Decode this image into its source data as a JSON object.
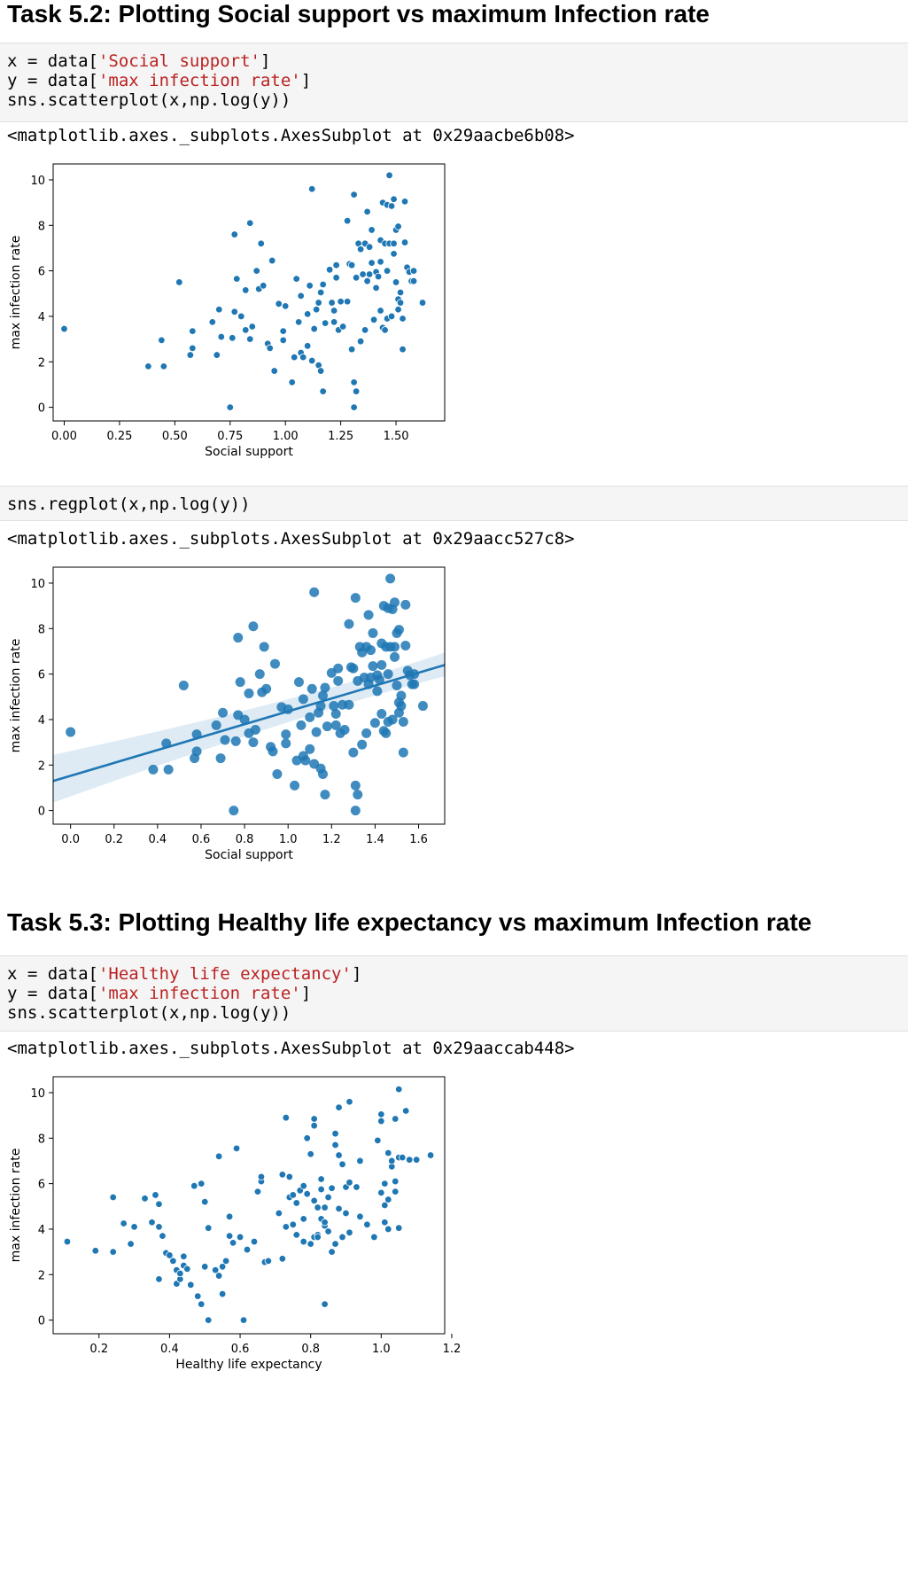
{
  "tasks": [
    {
      "heading": "Task 5.2: Plotting Social support vs maximum Infection rate",
      "code_lines": [
        [
          {
            "t": "x = data["
          },
          {
            "t": "'Social support'",
            "s": 1
          },
          {
            "t": "]"
          }
        ],
        [
          {
            "t": "y = data["
          },
          {
            "t": "'max infection rate'",
            "s": 1
          },
          {
            "t": "]"
          }
        ],
        [
          {
            "t": "sns.scatterplot(x,np.log(y))"
          }
        ]
      ],
      "output": "<matplotlib.axes._subplots.AxesSubplot at 0x29aacbe6b08>"
    },
    {
      "heading": "",
      "code_lines": [
        [
          {
            "t": "sns.regplot(x,np.log(y))"
          }
        ]
      ],
      "output": "<matplotlib.axes._subplots.AxesSubplot at 0x29aacc527c8>"
    },
    {
      "heading": "Task 5.3: Plotting Healthy life expectancy vs maximum Infection rate",
      "code_lines": [
        [
          {
            "t": "x = data["
          },
          {
            "t": "'Healthy life expectancy'",
            "s": 1
          },
          {
            "t": "]"
          }
        ],
        [
          {
            "t": "y = data["
          },
          {
            "t": "'max infection rate'",
            "s": 1
          },
          {
            "t": "]"
          }
        ],
        [
          {
            "t": "sns.scatterplot(x,np.log(y))"
          }
        ]
      ],
      "output": "<matplotlib.axes._subplots.AxesSubplot at 0x29aaccab448>"
    }
  ],
  "chart_data": [
    {
      "type": "scatter",
      "xlabel": "Social support",
      "ylabel": "max infection rate",
      "xlim": [
        -0.05,
        1.72
      ],
      "ylim": [
        -0.6,
        10.7
      ],
      "xticks": [
        0.0,
        0.25,
        0.5,
        0.75,
        1.0,
        1.25,
        1.5
      ],
      "xtick_labels": [
        "0.00",
        "0.25",
        "0.50",
        "0.75",
        "1.00",
        "1.25",
        "1.50"
      ],
      "yticks": [
        0,
        2,
        4,
        6,
        8,
        10
      ],
      "ytick_labels": [
        "0",
        "2",
        "4",
        "6",
        "8",
        "10"
      ],
      "color": "#1f77b4",
      "points": [
        [
          0.0,
          3.45
        ],
        [
          0.38,
          1.8
        ],
        [
          0.45,
          1.8
        ],
        [
          0.44,
          2.95
        ],
        [
          0.52,
          5.5
        ],
        [
          0.57,
          2.3
        ],
        [
          0.58,
          2.6
        ],
        [
          0.58,
          3.35
        ],
        [
          0.67,
          3.75
        ],
        [
          0.69,
          2.3
        ],
        [
          0.7,
          4.3
        ],
        [
          0.71,
          3.1
        ],
        [
          0.75,
          0.0
        ],
        [
          0.76,
          3.05
        ],
        [
          0.77,
          7.6
        ],
        [
          0.77,
          4.2
        ],
        [
          0.78,
          5.65
        ],
        [
          0.8,
          4.0
        ],
        [
          0.82,
          3.4
        ],
        [
          0.82,
          5.15
        ],
        [
          0.84,
          8.1
        ],
        [
          0.84,
          3.0
        ],
        [
          0.85,
          3.55
        ],
        [
          0.87,
          6.0
        ],
        [
          0.88,
          5.2
        ],
        [
          0.89,
          7.2
        ],
        [
          0.9,
          5.35
        ],
        [
          0.92,
          2.8
        ],
        [
          0.93,
          2.6
        ],
        [
          0.94,
          6.45
        ],
        [
          0.95,
          1.6
        ],
        [
          0.97,
          4.55
        ],
        [
          0.99,
          3.35
        ],
        [
          0.99,
          2.95
        ],
        [
          1.0,
          4.45
        ],
        [
          1.03,
          1.1
        ],
        [
          1.04,
          2.2
        ],
        [
          1.05,
          5.65
        ],
        [
          1.06,
          3.75
        ],
        [
          1.07,
          2.4
        ],
        [
          1.07,
          4.9
        ],
        [
          1.08,
          2.2
        ],
        [
          1.1,
          2.7
        ],
        [
          1.1,
          4.1
        ],
        [
          1.11,
          5.35
        ],
        [
          1.12,
          2.05
        ],
        [
          1.12,
          9.6
        ],
        [
          1.13,
          3.45
        ],
        [
          1.14,
          4.3
        ],
        [
          1.15,
          4.6
        ],
        [
          1.15,
          1.85
        ],
        [
          1.16,
          5.05
        ],
        [
          1.16,
          1.6
        ],
        [
          1.17,
          0.7
        ],
        [
          1.17,
          5.4
        ],
        [
          1.18,
          3.7
        ],
        [
          1.2,
          6.05
        ],
        [
          1.21,
          4.6
        ],
        [
          1.22,
          4.25
        ],
        [
          1.22,
          3.75
        ],
        [
          1.23,
          6.25
        ],
        [
          1.23,
          5.7
        ],
        [
          1.24,
          3.4
        ],
        [
          1.25,
          4.65
        ],
        [
          1.26,
          3.55
        ],
        [
          1.28,
          8.2
        ],
        [
          1.28,
          4.65
        ],
        [
          1.29,
          6.3
        ],
        [
          1.3,
          6.25
        ],
        [
          1.3,
          2.55
        ],
        [
          1.31,
          9.35
        ],
        [
          1.31,
          1.1
        ],
        [
          1.31,
          0.0
        ],
        [
          1.32,
          5.7
        ],
        [
          1.32,
          0.7
        ],
        [
          1.33,
          7.2
        ],
        [
          1.34,
          6.95
        ],
        [
          1.34,
          2.9
        ],
        [
          1.35,
          5.85
        ],
        [
          1.36,
          7.2
        ],
        [
          1.36,
          3.4
        ],
        [
          1.37,
          8.6
        ],
        [
          1.37,
          5.55
        ],
        [
          1.38,
          7.05
        ],
        [
          1.38,
          5.85
        ],
        [
          1.39,
          6.35
        ],
        [
          1.39,
          7.8
        ],
        [
          1.4,
          3.85
        ],
        [
          1.41,
          5.95
        ],
        [
          1.41,
          5.25
        ],
        [
          1.42,
          5.75
        ],
        [
          1.43,
          6.4
        ],
        [
          1.43,
          7.35
        ],
        [
          1.43,
          4.25
        ],
        [
          1.44,
          3.5
        ],
        [
          1.44,
          9.0
        ],
        [
          1.45,
          7.2
        ],
        [
          1.45,
          3.4
        ],
        [
          1.46,
          8.9
        ],
        [
          1.46,
          6.0
        ],
        [
          1.46,
          3.9
        ],
        [
          1.47,
          10.2
        ],
        [
          1.47,
          7.2
        ],
        [
          1.48,
          4.0
        ],
        [
          1.48,
          8.85
        ],
        [
          1.49,
          6.75
        ],
        [
          1.49,
          9.15
        ],
        [
          1.49,
          7.2
        ],
        [
          1.5,
          5.5
        ],
        [
          1.5,
          7.8
        ],
        [
          1.51,
          7.95
        ],
        [
          1.51,
          4.75
        ],
        [
          1.51,
          4.3
        ],
        [
          1.52,
          5.05
        ],
        [
          1.52,
          4.6
        ],
        [
          1.53,
          3.9
        ],
        [
          1.53,
          2.55
        ],
        [
          1.54,
          9.05
        ],
        [
          1.54,
          7.25
        ],
        [
          1.55,
          6.15
        ],
        [
          1.56,
          5.95
        ],
        [
          1.57,
          5.55
        ],
        [
          1.58,
          6.0
        ],
        [
          1.58,
          5.55
        ],
        [
          1.62,
          4.6
        ]
      ]
    },
    {
      "type": "scatter",
      "xlabel": "Social support",
      "ylabel": "max infection rate",
      "xlim": [
        -0.08,
        1.72
      ],
      "ylim": [
        -0.6,
        10.7
      ],
      "xticks": [
        0.0,
        0.2,
        0.4,
        0.6,
        0.8,
        1.0,
        1.2,
        1.4,
        1.6
      ],
      "xtick_labels": [
        "0.0",
        "0.2",
        "0.4",
        "0.6",
        "0.8",
        "1.0",
        "1.2",
        "1.4",
        "1.6"
      ],
      "yticks": [
        0,
        2,
        4,
        6,
        8,
        10
      ],
      "ytick_labels": [
        "0",
        "2",
        "4",
        "6",
        "8",
        "10"
      ],
      "color": "#1f77b4",
      "regression": {
        "x0": -0.08,
        "y0": 1.3,
        "x1": 1.72,
        "y1": 6.4,
        "ci_x0_low": 0.35,
        "ci_x0_high": 2.45,
        "ci_x1_low": 5.9,
        "ci_x1_high": 6.95,
        "mid_x": 1.1,
        "mid_halfwidth": 0.25
      },
      "points": "same_as_chart_0"
    },
    {
      "type": "scatter",
      "xlabel": "Healthy life expectancy",
      "ylabel": "max infection rate",
      "xlim": [
        0.07,
        1.18
      ],
      "ylim": [
        -0.6,
        10.7
      ],
      "xticks": [
        0.2,
        0.4,
        0.6,
        0.8,
        1.0,
        1.2
      ],
      "xtick_labels": [
        "0.2",
        "0.4",
        "0.6",
        "0.8",
        "1.0",
        "1.2"
      ],
      "yticks": [
        0,
        2,
        4,
        6,
        8,
        10
      ],
      "ytick_labels": [
        "0",
        "2",
        "4",
        "6",
        "8",
        "10"
      ],
      "color": "#1f77b4",
      "points": [
        [
          0.11,
          3.45
        ],
        [
          0.19,
          3.05
        ],
        [
          0.24,
          3.0
        ],
        [
          0.24,
          5.4
        ],
        [
          0.27,
          4.25
        ],
        [
          0.29,
          3.35
        ],
        [
          0.3,
          4.1
        ],
        [
          0.33,
          5.35
        ],
        [
          0.35,
          4.3
        ],
        [
          0.36,
          5.5
        ],
        [
          0.37,
          5.1
        ],
        [
          0.37,
          4.1
        ],
        [
          0.37,
          1.8
        ],
        [
          0.38,
          3.7
        ],
        [
          0.39,
          2.95
        ],
        [
          0.4,
          2.85
        ],
        [
          0.41,
          2.6
        ],
        [
          0.42,
          1.6
        ],
        [
          0.42,
          2.2
        ],
        [
          0.43,
          1.8
        ],
        [
          0.43,
          2.05
        ],
        [
          0.44,
          2.4
        ],
        [
          0.44,
          2.8
        ],
        [
          0.45,
          2.25
        ],
        [
          0.46,
          1.55
        ],
        [
          0.47,
          5.9
        ],
        [
          0.48,
          1.05
        ],
        [
          0.49,
          6.0
        ],
        [
          0.49,
          0.7
        ],
        [
          0.5,
          5.2
        ],
        [
          0.5,
          2.35
        ],
        [
          0.51,
          0.0
        ],
        [
          0.51,
          4.05
        ],
        [
          0.53,
          2.2
        ],
        [
          0.54,
          1.95
        ],
        [
          0.54,
          7.2
        ],
        [
          0.55,
          2.35
        ],
        [
          0.55,
          1.15
        ],
        [
          0.56,
          2.6
        ],
        [
          0.57,
          4.55
        ],
        [
          0.57,
          3.7
        ],
        [
          0.58,
          3.4
        ],
        [
          0.59,
          7.55
        ],
        [
          0.6,
          3.65
        ],
        [
          0.61,
          0.0
        ],
        [
          0.62,
          3.1
        ],
        [
          0.64,
          3.45
        ],
        [
          0.65,
          5.65
        ],
        [
          0.66,
          6.1
        ],
        [
          0.66,
          6.3
        ],
        [
          0.67,
          2.55
        ],
        [
          0.68,
          2.6
        ],
        [
          0.71,
          4.7
        ],
        [
          0.72,
          6.4
        ],
        [
          0.72,
          2.7
        ],
        [
          0.73,
          8.9
        ],
        [
          0.73,
          4.1
        ],
        [
          0.74,
          5.4
        ],
        [
          0.74,
          6.3
        ],
        [
          0.75,
          5.5
        ],
        [
          0.75,
          4.2
        ],
        [
          0.76,
          5.15
        ],
        [
          0.76,
          3.75
        ],
        [
          0.77,
          5.7
        ],
        [
          0.78,
          5.9
        ],
        [
          0.78,
          4.45
        ],
        [
          0.78,
          3.45
        ],
        [
          0.79,
          5.55
        ],
        [
          0.79,
          8.0
        ],
        [
          0.8,
          7.3
        ],
        [
          0.8,
          3.35
        ],
        [
          0.81,
          3.65
        ],
        [
          0.81,
          5.25
        ],
        [
          0.81,
          8.85
        ],
        [
          0.81,
          8.55
        ],
        [
          0.82,
          4.95
        ],
        [
          0.82,
          3.75
        ],
        [
          0.82,
          3.65
        ],
        [
          0.83,
          5.75
        ],
        [
          0.83,
          4.45
        ],
        [
          0.83,
          6.2
        ],
        [
          0.84,
          4.15
        ],
        [
          0.84,
          4.95
        ],
        [
          0.84,
          0.7
        ],
        [
          0.84,
          4.3
        ],
        [
          0.85,
          3.9
        ],
        [
          0.85,
          5.4
        ],
        [
          0.86,
          3.0
        ],
        [
          0.86,
          5.8
        ],
        [
          0.87,
          8.2
        ],
        [
          0.87,
          7.7
        ],
        [
          0.87,
          3.35
        ],
        [
          0.88,
          7.25
        ],
        [
          0.88,
          4.9
        ],
        [
          0.88,
          9.35
        ],
        [
          0.89,
          6.85
        ],
        [
          0.89,
          3.65
        ],
        [
          0.9,
          5.85
        ],
        [
          0.9,
          4.7
        ],
        [
          0.91,
          6.05
        ],
        [
          0.91,
          3.85
        ],
        [
          0.91,
          9.6
        ],
        [
          0.93,
          5.85
        ],
        [
          0.94,
          4.55
        ],
        [
          0.94,
          7.0
        ],
        [
          0.96,
          4.2
        ],
        [
          0.98,
          3.65
        ],
        [
          0.99,
          7.9
        ],
        [
          1.0,
          9.05
        ],
        [
          1.0,
          5.6
        ],
        [
          1.0,
          8.75
        ],
        [
          1.01,
          6.0
        ],
        [
          1.01,
          5.05
        ],
        [
          1.01,
          4.3
        ],
        [
          1.02,
          5.3
        ],
        [
          1.02,
          7.35
        ],
        [
          1.02,
          4.0
        ],
        [
          1.03,
          6.75
        ],
        [
          1.03,
          7.0
        ],
        [
          1.04,
          5.65
        ],
        [
          1.04,
          6.1
        ],
        [
          1.04,
          8.85
        ],
        [
          1.05,
          7.15
        ],
        [
          1.05,
          4.05
        ],
        [
          1.05,
          10.15
        ],
        [
          1.06,
          7.15
        ],
        [
          1.07,
          9.2
        ],
        [
          1.08,
          7.05
        ],
        [
          1.1,
          7.05
        ],
        [
          1.14,
          7.25
        ]
      ]
    }
  ]
}
